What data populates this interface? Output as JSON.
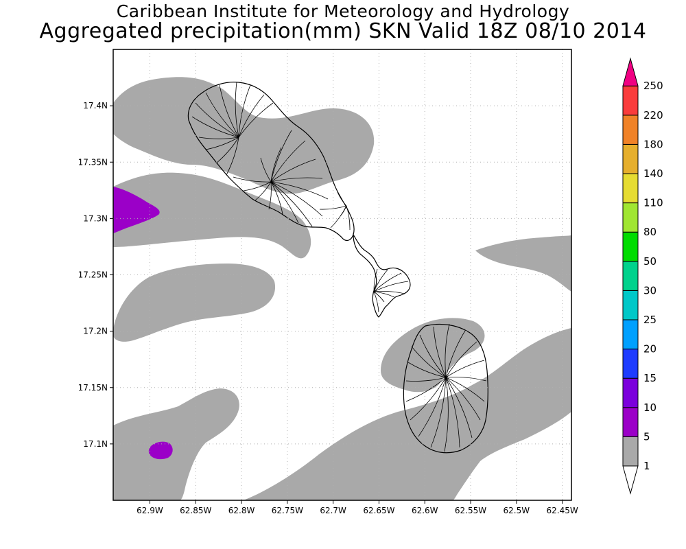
{
  "header": {
    "title_line1": "Caribbean Institute for Meteorology and Hydrology",
    "title_line2": "Aggregated precipitation(mm) SKN Valid 18Z 08/10 2014"
  },
  "map": {
    "lon_range": [
      -62.94,
      -62.44
    ],
    "lat_range": [
      17.05,
      17.45
    ],
    "lon_ticks": [
      {
        "value": -62.9,
        "label": "62.9W"
      },
      {
        "value": -62.85,
        "label": "62.85W"
      },
      {
        "value": -62.8,
        "label": "62.8W"
      },
      {
        "value": -62.75,
        "label": "62.75W"
      },
      {
        "value": -62.7,
        "label": "62.7W"
      },
      {
        "value": -62.65,
        "label": "62.65W"
      },
      {
        "value": -62.6,
        "label": "62.6W"
      },
      {
        "value": -62.55,
        "label": "62.55W"
      },
      {
        "value": -62.5,
        "label": "62.5W"
      },
      {
        "value": -62.45,
        "label": "62.45W"
      }
    ],
    "lat_ticks": [
      {
        "value": 17.1,
        "label": "17.1N"
      },
      {
        "value": 17.15,
        "label": "17.15N"
      },
      {
        "value": 17.2,
        "label": "17.2N"
      },
      {
        "value": 17.25,
        "label": "17.25N"
      },
      {
        "value": 17.3,
        "label": "17.3N"
      },
      {
        "value": 17.35,
        "label": "17.35N"
      },
      {
        "value": 17.4,
        "label": "17.4N"
      }
    ],
    "grid": true,
    "rain_color_1_5": "#a9a9a9",
    "rain_color_5_10": "#9b00c8",
    "land_outline_color": "#000000"
  },
  "legend": {
    "bins": [
      {
        "label": "1",
        "color": "#ffffff"
      },
      {
        "label": "5",
        "color": "#a9a9a9"
      },
      {
        "label": "10",
        "color": "#9b00c8"
      },
      {
        "label": "15",
        "color": "#7b00dc"
      },
      {
        "label": "20",
        "color": "#1e3cff"
      },
      {
        "label": "25",
        "color": "#00a0ff"
      },
      {
        "label": "30",
        "color": "#00c8c8"
      },
      {
        "label": "50",
        "color": "#00d28c"
      },
      {
        "label": "80",
        "color": "#00dc00"
      },
      {
        "label": "110",
        "color": "#a0e632"
      },
      {
        "label": "140",
        "color": "#e6dc32"
      },
      {
        "label": "180",
        "color": "#e6af2d"
      },
      {
        "label": "220",
        "color": "#f08228"
      },
      {
        "label": "250",
        "color": "#fa3c3c"
      }
    ],
    "top_arrow_color": "#f00082"
  }
}
